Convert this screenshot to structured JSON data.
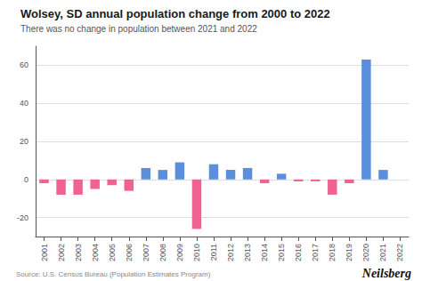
{
  "chart_data": {
    "type": "bar",
    "title": "Wolsey, SD annual population change from 2000 to 2022",
    "subtitle": "There was no change in population between 2021 and 2022",
    "annotations": [
      "Source: U.S. Census Bureau (Population Estimates Program)",
      "Neilsberg"
    ],
    "categories": [
      "2001",
      "2002",
      "2003",
      "2004",
      "2005",
      "2006",
      "2007",
      "2008",
      "2009",
      "2010",
      "2011",
      "2012",
      "2013",
      "2014",
      "2015",
      "2016",
      "2017",
      "2018",
      "2019",
      "2020",
      "2021",
      "2022"
    ],
    "values": [
      -2,
      -8,
      -8,
      -5,
      -3,
      -6,
      6,
      5,
      9,
      -26,
      8,
      5,
      6,
      -2,
      3,
      -1,
      -1,
      -8,
      -2,
      63,
      5,
      0
    ],
    "colors": [
      "#f06292",
      "#f06292",
      "#f06292",
      "#f06292",
      "#f06292",
      "#f06292",
      "#5b8fde",
      "#5b8fde",
      "#5b8fde",
      "#f06292",
      "#5b8fde",
      "#5b8fde",
      "#5b8fde",
      "#f06292",
      "#5b8fde",
      "#f06292",
      "#f06292",
      "#f06292",
      "#f06292",
      "#5b8fde",
      "#5b8fde",
      "#5b8fde"
    ],
    "ylim": [
      -30,
      70
    ],
    "yticks": [
      -20,
      0,
      20,
      40,
      60
    ],
    "grid": true
  }
}
